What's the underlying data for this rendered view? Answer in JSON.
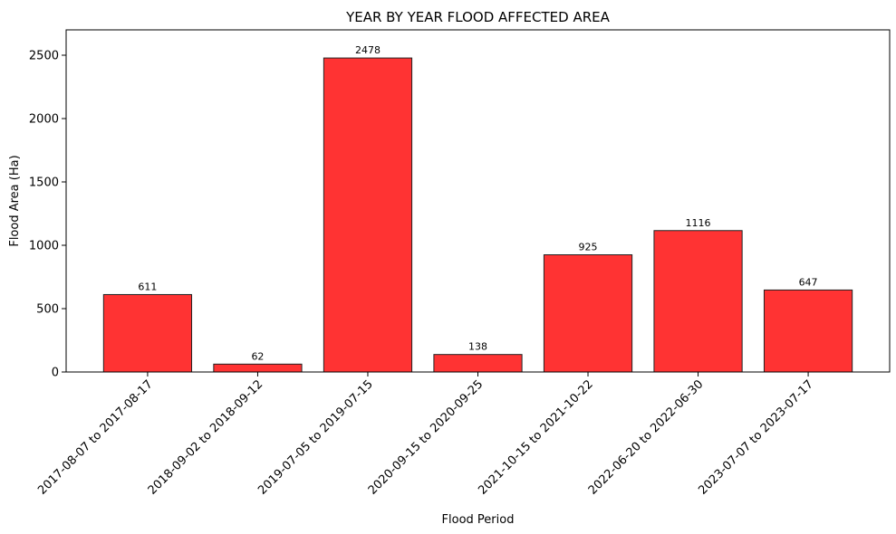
{
  "chart_data": {
    "type": "bar",
    "title": "YEAR BY YEAR FLOOD AFFECTED AREA",
    "xlabel": "Flood Period",
    "ylabel": "Flood Area (Ha)",
    "categories": [
      "2017-08-07 to 2017-08-17",
      "2018-09-02 to 2018-09-12",
      "2019-07-05 to 2019-07-15",
      "2020-09-15 to 2020-09-25",
      "2021-10-15 to 2021-10-22",
      "2022-06-20 to 2022-06-30",
      "2023-07-07 to 2023-07-17"
    ],
    "values": [
      611,
      62,
      2478,
      138,
      925,
      1116,
      647
    ],
    "data_labels": [
      "611",
      "62",
      "2478",
      "138",
      "925",
      "1116",
      "647"
    ],
    "yticks": [
      0,
      500,
      1000,
      1500,
      2000,
      2500
    ],
    "ylim": [
      0,
      2700
    ],
    "grid": false,
    "legend": "none",
    "bar_color": "#ff3333",
    "bar_edge_color": "#222222"
  }
}
